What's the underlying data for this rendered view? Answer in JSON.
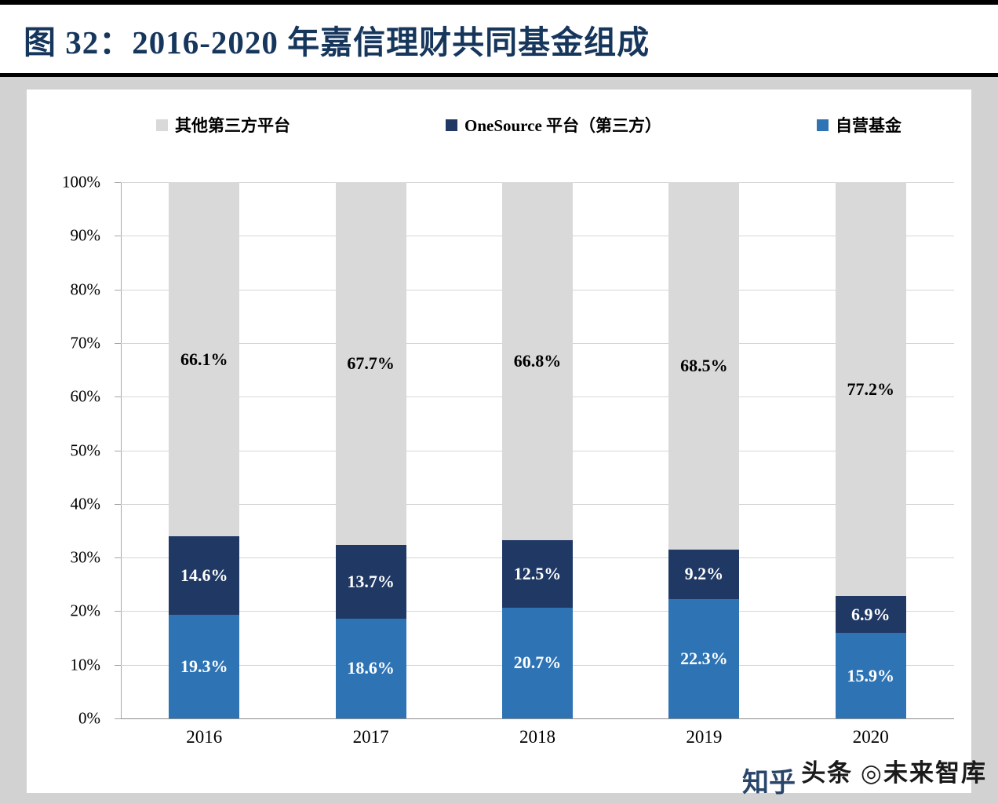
{
  "header": {
    "title": "图 32：2016-2020 年嘉信理财共同基金组成"
  },
  "watermark": {
    "back": "头条 ◎未来智库",
    "front": "知乎"
  },
  "legend": [
    {
      "label": "其他第三方平台",
      "color": "#d9d9d9"
    },
    {
      "label": "OneSource 平台（第三方）",
      "color": "#1f3864"
    },
    {
      "label": "自营基金",
      "color": "#2e74b5"
    }
  ],
  "chart_data": {
    "type": "bar",
    "stacked": true,
    "title": "图 32：2016-2020 年嘉信理财共同基金组成",
    "categories": [
      "2016",
      "2017",
      "2018",
      "2019",
      "2020"
    ],
    "series": [
      {
        "name": "自营基金",
        "color": "#2e74b5",
        "label_color": "#ffffff",
        "values": [
          19.3,
          18.6,
          20.7,
          22.3,
          15.9
        ]
      },
      {
        "name": "OneSource 平台（第三方）",
        "color": "#1f3864",
        "label_color": "#ffffff",
        "values": [
          14.6,
          13.7,
          12.5,
          9.2,
          6.9
        ]
      },
      {
        "name": "其他第三方平台",
        "color": "#d9d9d9",
        "label_color": "#000000",
        "values": [
          66.1,
          67.7,
          66.8,
          68.5,
          77.2
        ]
      }
    ],
    "legend_position": "top",
    "grid": true,
    "ylim": [
      0,
      100
    ],
    "yticks": [
      "100%",
      "90%",
      "80%",
      "70%",
      "60%",
      "50%",
      "40%",
      "30%",
      "20%",
      "10%",
      "0%"
    ]
  }
}
